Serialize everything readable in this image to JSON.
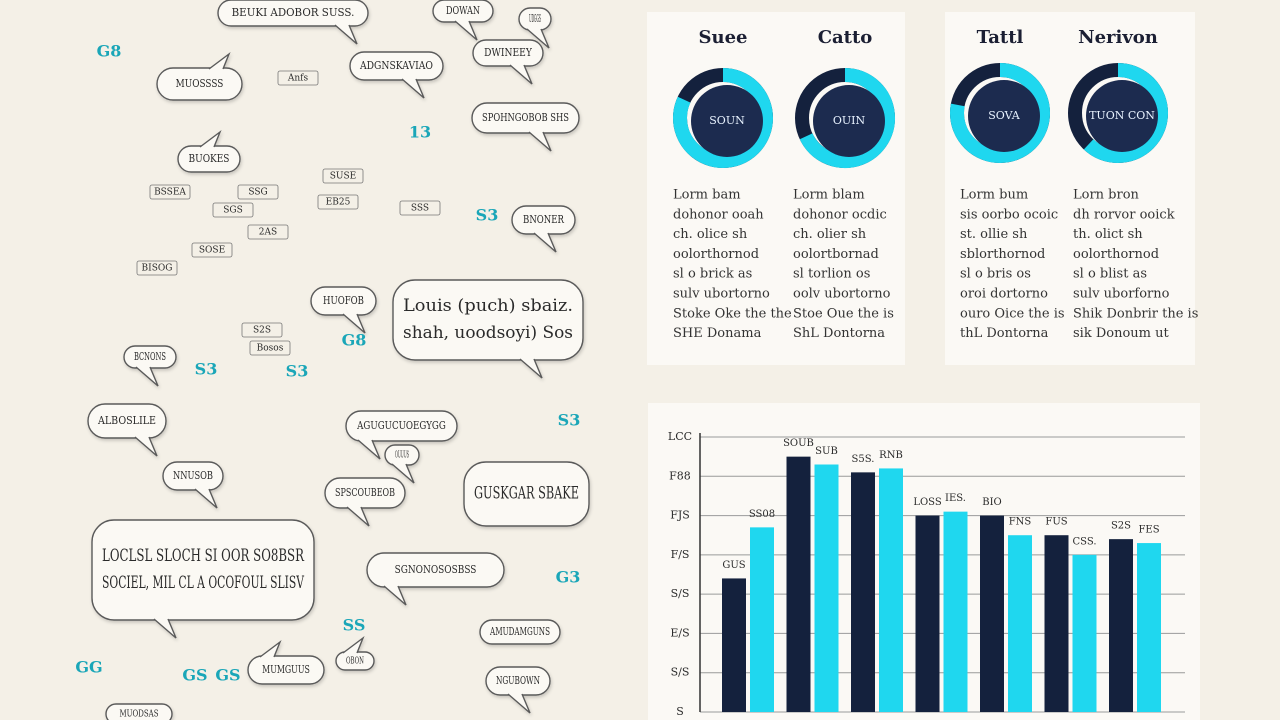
{
  "bubbles": [
    [
      "BEUKI ADOBOR SUSS."
    ],
    [
      "DOWAN"
    ],
    [
      "UDGGS"
    ],
    [
      "DWINEEY"
    ],
    [
      "ADGNSKAVIAO"
    ],
    [
      "MUOSSSS"
    ],
    [
      "SPOHNGOBOB SHS"
    ],
    [
      "BUOKES"
    ],
    [
      "BNONER"
    ],
    [
      "HUOFOB"
    ],
    [
      "Louis (puch) sbaiz.",
      "shah, uoodsoyi) Sos"
    ],
    [
      "BCNONS"
    ],
    [
      "ALBOSLILE"
    ],
    [
      "AGUGUCUOEGYGG"
    ],
    [
      "NNUSOB"
    ],
    [
      "OUUUS"
    ],
    [
      "GUSKGAR SBAKE"
    ],
    [
      "SPSCOUBEOB"
    ],
    [
      "LOCLSL SLOCH SI OOR SO8BSR",
      "SOCIEL, MIL CL A OCOFOUL SLISV"
    ],
    [
      "SGNONOSOSBSS"
    ],
    [
      "AMUDAMGUNS"
    ],
    [
      "MUMGUUS"
    ],
    [
      "OBON"
    ],
    [
      "NGUBOWN"
    ],
    [
      "MUODSAS"
    ]
  ],
  "tags": [
    "G8",
    "13",
    "S3",
    "G8",
    "S3",
    "G3",
    "SS",
    "GS",
    "GS",
    "GG",
    "S3",
    "S3"
  ],
  "fragments": [
    "Anfs",
    "SSG",
    "SGS",
    "S2S",
    "SUSE",
    "BSSEA",
    "2AS",
    "SOSE",
    "BISOG",
    "EB25",
    "SSS",
    "Bosos"
  ],
  "cards": [
    {
      "title": "Suee",
      "center": "SOUN",
      "value": 82,
      "lines": [
        "Lorm bam",
        "dohonor ooah",
        "ch. olice sh",
        "oolorthornod",
        "sl o brick as",
        "sulv ubortorno",
        "Stoke Oke the the",
        "SHE Donama"
      ]
    },
    {
      "title": "Catto",
      "center": "OUIN",
      "value": 68,
      "lines": [
        "Lorm blam",
        "dohonor ocdic",
        "ch. olier sh",
        "oolortbornad",
        "sl torlion os",
        "oolv ubortorno",
        "Stoe Oue the is",
        "ShL Dontorna"
      ]
    },
    {
      "title": "Tattl",
      "center": "SOVA",
      "value": 78,
      "lines": [
        "Lorm bum",
        "sis oorbo ocoic",
        "st. ollie sh",
        "sblorthornod",
        "sl o bris os",
        "oroi dortorno",
        "ouro Oice the is",
        "thL Dontorna"
      ]
    },
    {
      "title": "Nerivon",
      "center": "TUON CON",
      "value": 62,
      "lines": [
        "Lorn bron",
        "dh rorvor ooick",
        "th. olict sh",
        "oolorthornod",
        "sl o blist as",
        "sulv uborforno",
        "Shik Donbrir the is",
        "sik Donoum ut"
      ]
    }
  ],
  "chart_data": {
    "type": "bar",
    "categories": [
      null,
      null,
      null,
      null,
      null,
      null,
      null
    ],
    "series": [
      {
        "color": "#14213d",
        "values": [
          3.4,
          6.5,
          6.1,
          5.0,
          5.0,
          4.5,
          4.4
        ],
        "notes": [
          "GUS",
          "SOUB",
          "S5S.",
          "LOSS",
          "BIO",
          "FUS",
          "S2S"
        ]
      },
      {
        "color": "#1fd7ef",
        "values": [
          4.7,
          6.3,
          6.2,
          5.1,
          4.5,
          4.0,
          4.3
        ],
        "notes": [
          "SS08",
          "SUB",
          "RNB",
          "IES.",
          "FNS",
          "CSS.",
          "FES"
        ]
      }
    ],
    "ylim": [
      0,
      7
    ],
    "yticks": [
      {
        "value": 0,
        "label": "S"
      },
      {
        "value": 1,
        "label": "S/S"
      },
      {
        "value": 2,
        "label": "E/S"
      },
      {
        "value": 3,
        "label": "S/S"
      },
      {
        "value": 4,
        "label": "F/S"
      },
      {
        "value": 5,
        "label": "FJS"
      },
      {
        "value": 6,
        "label": "F88"
      },
      {
        "value": 7,
        "label": "LCC"
      }
    ],
    "grid": true
  }
}
